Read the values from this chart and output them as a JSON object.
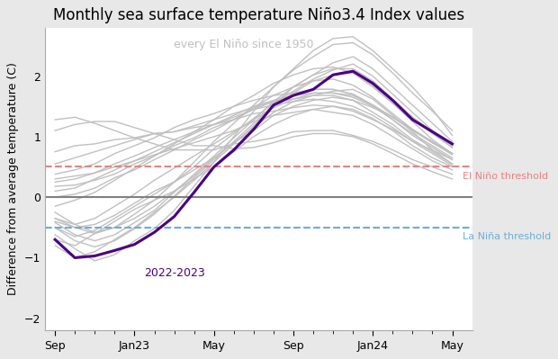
{
  "title": "Monthly sea surface temperature Niño3.4 Index values",
  "ylabel": "Difference from average temperature (C)",
  "el_nino_threshold": 0.5,
  "la_nina_threshold": -0.5,
  "el_nino_label": "El Niño threshold",
  "la_nina_label": "La Niña threshold",
  "annotation_gray": "every El Niño since 1950",
  "annotation_purple": "2022-2023",
  "ylim": [
    -2.2,
    2.8
  ],
  "figure_bg": "#e8e8e8",
  "plot_bg": "#ffffff",
  "purple_color": "#4B0082",
  "gray_color": "#c0c0c0",
  "el_nino_color": "#f08080",
  "la_nina_color": "#6baed6",
  "zero_line_color": "#808080",
  "xtick_labels": [
    "Sep",
    "Jan23",
    "May",
    "Sep",
    "Jan24",
    "May"
  ],
  "xtick_positions": [
    0,
    4,
    8,
    12,
    16,
    20
  ],
  "purple_line": [
    -0.7,
    -1.0,
    -0.97,
    -0.88,
    -0.78,
    -0.58,
    -0.32,
    0.08,
    0.5,
    0.78,
    1.12,
    1.52,
    1.68,
    1.78,
    2.02,
    2.08,
    1.88,
    1.6,
    1.28,
    1.08,
    0.88
  ],
  "gray_lines": [
    [
      -0.7,
      -0.8,
      -0.6,
      -0.4,
      -0.2,
      -0.05,
      0.1,
      0.3,
      0.5,
      0.75,
      1.0,
      1.2,
      1.35,
      1.45,
      1.5,
      1.45,
      1.3,
      1.1,
      0.85,
      0.65,
      0.5
    ],
    [
      -0.4,
      -0.5,
      -0.45,
      -0.3,
      -0.1,
      0.1,
      0.25,
      0.45,
      0.65,
      0.9,
      1.1,
      1.35,
      1.5,
      1.6,
      1.65,
      1.6,
      1.4,
      1.2,
      0.95,
      0.75,
      0.55
    ],
    [
      0.3,
      0.35,
      0.4,
      0.5,
      0.6,
      0.7,
      0.8,
      0.9,
      1.0,
      1.1,
      1.25,
      1.35,
      1.4,
      1.45,
      1.4,
      1.35,
      1.2,
      1.0,
      0.8,
      0.6,
      0.45
    ],
    [
      -0.5,
      -0.65,
      -0.55,
      -0.35,
      -0.15,
      0.05,
      0.25,
      0.5,
      0.8,
      1.05,
      1.3,
      1.55,
      1.75,
      1.95,
      2.1,
      2.2,
      2.0,
      1.7,
      1.4,
      1.1,
      0.85
    ],
    [
      0.1,
      0.15,
      0.3,
      0.45,
      0.6,
      0.75,
      0.9,
      1.05,
      1.2,
      1.35,
      1.5,
      1.6,
      1.68,
      1.72,
      1.72,
      1.65,
      1.5,
      1.28,
      1.05,
      0.85,
      0.65
    ],
    [
      -0.35,
      -0.5,
      -0.6,
      -0.5,
      -0.35,
      -0.15,
      0.1,
      0.35,
      0.65,
      0.9,
      1.15,
      1.4,
      1.58,
      1.68,
      1.75,
      1.78,
      1.62,
      1.35,
      1.08,
      0.78,
      0.55
    ],
    [
      1.1,
      1.2,
      1.25,
      1.25,
      1.15,
      1.05,
      0.95,
      0.85,
      0.85,
      0.8,
      0.82,
      0.9,
      1.0,
      1.05,
      1.05,
      1.0,
      0.88,
      0.72,
      0.55,
      0.42,
      0.3
    ],
    [
      -0.8,
      -1.0,
      -0.9,
      -0.7,
      -0.5,
      -0.25,
      0.0,
      0.28,
      0.58,
      0.88,
      1.18,
      1.5,
      1.72,
      1.92,
      2.02,
      2.05,
      1.85,
      1.55,
      1.25,
      0.95,
      0.72
    ],
    [
      0.25,
      0.3,
      0.4,
      0.55,
      0.68,
      0.82,
      0.95,
      1.08,
      1.2,
      1.32,
      1.45,
      1.52,
      1.58,
      1.62,
      1.58,
      1.5,
      1.35,
      1.15,
      0.92,
      0.72,
      0.52
    ],
    [
      -0.25,
      -0.45,
      -0.58,
      -0.5,
      -0.28,
      -0.05,
      0.25,
      0.58,
      0.92,
      1.22,
      1.52,
      1.82,
      2.1,
      2.32,
      2.52,
      2.55,
      2.35,
      2.05,
      1.72,
      1.42,
      1.1
    ],
    [
      0.0,
      0.05,
      0.15,
      0.32,
      0.45,
      0.62,
      0.78,
      0.95,
      1.1,
      1.28,
      1.48,
      1.68,
      1.82,
      1.92,
      1.95,
      1.85,
      1.65,
      1.38,
      1.12,
      0.9,
      0.72
    ],
    [
      -0.5,
      -0.72,
      -0.82,
      -0.72,
      -0.52,
      -0.28,
      0.02,
      0.32,
      0.62,
      0.92,
      1.22,
      1.52,
      1.82,
      2.02,
      2.22,
      2.32,
      2.12,
      1.82,
      1.52,
      1.22,
      0.92
    ],
    [
      0.55,
      0.65,
      0.75,
      0.85,
      0.95,
      1.05,
      1.08,
      1.18,
      1.28,
      1.38,
      1.48,
      1.58,
      1.62,
      1.68,
      1.68,
      1.6,
      1.48,
      1.32,
      1.12,
      0.92,
      0.72
    ],
    [
      -0.35,
      -0.45,
      -0.35,
      -0.15,
      0.05,
      0.28,
      0.48,
      0.68,
      0.88,
      1.08,
      1.28,
      1.48,
      1.62,
      1.72,
      1.72,
      1.68,
      1.52,
      1.28,
      1.02,
      0.82,
      0.62
    ],
    [
      1.28,
      1.32,
      1.22,
      1.1,
      0.98,
      0.88,
      0.78,
      0.78,
      0.78,
      0.88,
      0.92,
      0.98,
      1.08,
      1.1,
      1.1,
      1.02,
      0.92,
      0.78,
      0.62,
      0.5,
      0.38
    ],
    [
      -0.62,
      -0.85,
      -1.05,
      -0.95,
      -0.72,
      -0.52,
      -0.22,
      0.18,
      0.58,
      1.0,
      1.42,
      1.82,
      2.12,
      2.42,
      2.62,
      2.65,
      2.42,
      2.12,
      1.82,
      1.45,
      1.02
    ],
    [
      0.38,
      0.45,
      0.55,
      0.72,
      0.85,
      0.98,
      1.15,
      1.28,
      1.38,
      1.5,
      1.6,
      1.68,
      1.72,
      1.78,
      1.78,
      1.7,
      1.52,
      1.32,
      1.12,
      0.9,
      0.72
    ],
    [
      -0.15,
      -0.05,
      0.08,
      0.28,
      0.48,
      0.68,
      0.88,
      1.08,
      1.28,
      1.5,
      1.68,
      1.88,
      2.02,
      2.12,
      2.15,
      2.05,
      1.82,
      1.55,
      1.32,
      1.05,
      0.82
    ],
    [
      0.75,
      0.85,
      0.88,
      0.95,
      0.98,
      1.05,
      1.08,
      1.15,
      1.2,
      1.28,
      1.38,
      1.42,
      1.48,
      1.52,
      1.5,
      1.42,
      1.28,
      1.12,
      0.92,
      0.78,
      0.62
    ],
    [
      -0.42,
      -0.62,
      -0.72,
      -0.62,
      -0.42,
      -0.22,
      0.08,
      0.38,
      0.68,
      0.98,
      1.28,
      1.58,
      1.82,
      2.02,
      2.12,
      2.12,
      1.92,
      1.62,
      1.32,
      1.08,
      0.82
    ],
    [
      0.18,
      0.2,
      0.28,
      0.38,
      0.55,
      0.68,
      0.85,
      0.98,
      1.15,
      1.28,
      1.45,
      1.58,
      1.68,
      1.78,
      1.78,
      1.7,
      1.52,
      1.32,
      1.1,
      0.9,
      0.7
    ]
  ]
}
